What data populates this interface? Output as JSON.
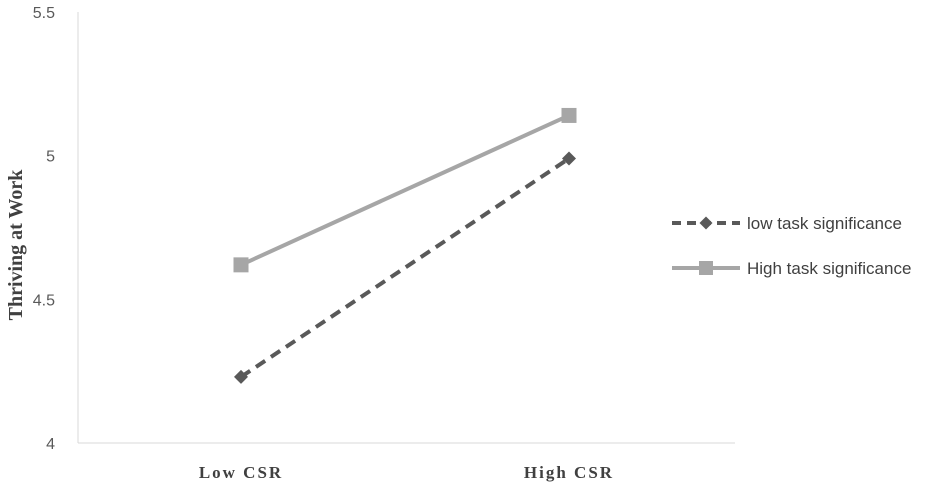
{
  "chart_data": {
    "type": "line",
    "title": "",
    "xlabel": "",
    "ylabel": "Thriving at Work",
    "categories": [
      "Low CSR",
      "High CSR"
    ],
    "ylim": [
      4,
      5.5
    ],
    "yticks": [
      "4",
      "4.5",
      "5",
      "5.5"
    ],
    "grid": false,
    "legend_position": "right",
    "series": [
      {
        "name": "low task significance",
        "values": [
          4.23,
          4.99
        ],
        "color": "#595959",
        "dash": "dashed",
        "marker": "diamond"
      },
      {
        "name": "High task significance",
        "values": [
          4.62,
          5.14
        ],
        "color": "#a6a6a6",
        "dash": "solid",
        "marker": "square"
      }
    ]
  }
}
